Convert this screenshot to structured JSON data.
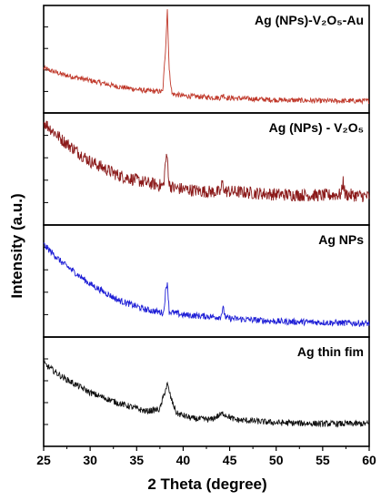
{
  "chart_data": {
    "type": "line",
    "xlabel": "2 Theta (degree)",
    "ylabel": "Intensity (a.u.)",
    "xlim": [
      25,
      60
    ],
    "x_ticks": [
      25,
      30,
      35,
      40,
      45,
      50,
      55,
      60
    ],
    "grid": false,
    "series": [
      {
        "name": "Ag (NPs)-V₂O₅-Au",
        "color": "#c0392b",
        "noise": 0.025,
        "points": [
          [
            25,
            0.42
          ],
          [
            27,
            0.36
          ],
          [
            30,
            0.3
          ],
          [
            33,
            0.24
          ],
          [
            36,
            0.2
          ],
          [
            37.8,
            0.19
          ],
          [
            38.1,
            0.6
          ],
          [
            38.3,
            1.0
          ],
          [
            38.5,
            0.4
          ],
          [
            38.8,
            0.17
          ],
          [
            40,
            0.15
          ],
          [
            44,
            0.13
          ],
          [
            44.3,
            0.16
          ],
          [
            44.6,
            0.13
          ],
          [
            50,
            0.11
          ],
          [
            55,
            0.1
          ],
          [
            60,
            0.1
          ]
        ]
      },
      {
        "name": "Ag (NPs) - V₂O₅",
        "color": "#8b1a1a",
        "noise": 0.06,
        "points": [
          [
            25,
            0.95
          ],
          [
            27,
            0.78
          ],
          [
            30,
            0.58
          ],
          [
            33,
            0.45
          ],
          [
            36,
            0.38
          ],
          [
            37.9,
            0.35
          ],
          [
            38.1,
            0.58
          ],
          [
            38.3,
            0.62
          ],
          [
            38.5,
            0.36
          ],
          [
            39,
            0.33
          ],
          [
            42,
            0.3
          ],
          [
            44,
            0.29
          ],
          [
            44.2,
            0.38
          ],
          [
            44.5,
            0.3
          ],
          [
            50,
            0.27
          ],
          [
            55,
            0.26
          ],
          [
            57,
            0.27
          ],
          [
            57.2,
            0.4
          ],
          [
            57.4,
            0.27
          ],
          [
            60,
            0.25
          ]
        ]
      },
      {
        "name": "Ag NPs",
        "color": "#1f1fd6",
        "noise": 0.03,
        "points": [
          [
            25,
            0.85
          ],
          [
            27,
            0.68
          ],
          [
            30,
            0.48
          ],
          [
            33,
            0.33
          ],
          [
            36,
            0.24
          ],
          [
            37.9,
            0.21
          ],
          [
            38.1,
            0.4
          ],
          [
            38.3,
            0.5
          ],
          [
            38.5,
            0.22
          ],
          [
            40,
            0.19
          ],
          [
            44,
            0.17
          ],
          [
            44.3,
            0.25
          ],
          [
            44.6,
            0.16
          ],
          [
            50,
            0.13
          ],
          [
            55,
            0.12
          ],
          [
            60,
            0.11
          ]
        ]
      },
      {
        "name": "Ag thin fim",
        "color": "#111111",
        "noise": 0.03,
        "points": [
          [
            25,
            0.78
          ],
          [
            27,
            0.65
          ],
          [
            30,
            0.5
          ],
          [
            33,
            0.4
          ],
          [
            36,
            0.32
          ],
          [
            37.5,
            0.34
          ],
          [
            38.0,
            0.5
          ],
          [
            38.3,
            0.58
          ],
          [
            38.7,
            0.44
          ],
          [
            39.3,
            0.3
          ],
          [
            41,
            0.25
          ],
          [
            43,
            0.24
          ],
          [
            44.3,
            0.3
          ],
          [
            45.5,
            0.24
          ],
          [
            50,
            0.21
          ],
          [
            55,
            0.2
          ],
          [
            60,
            0.2
          ]
        ]
      }
    ]
  }
}
